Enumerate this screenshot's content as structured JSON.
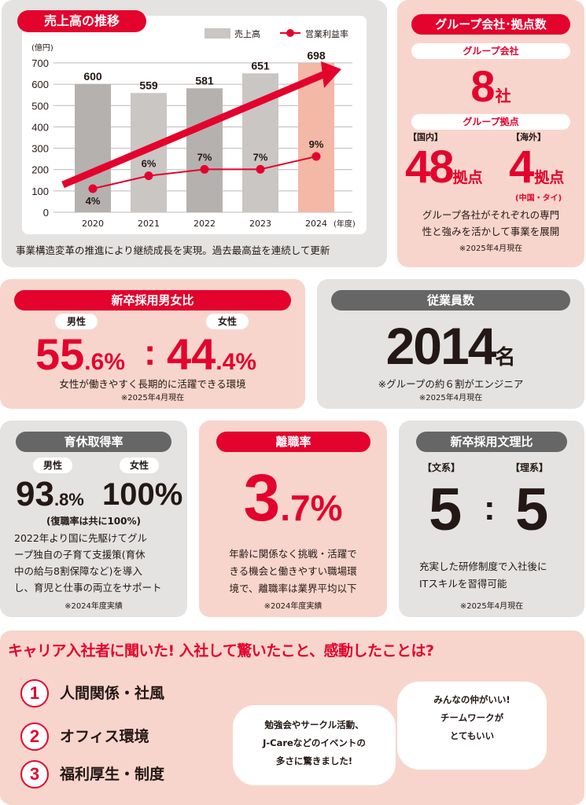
{
  "sales": {
    "title": "売上高の推移",
    "caption": "事業構造変革の推進により継続成長を実現。過去最高益を連続して更新"
  },
  "chart_data": {
    "type": "bar",
    "title": "売上高の推移",
    "ylabel": "(億円)",
    "xlabel": "(年度)",
    "ylim": [
      0,
      700
    ],
    "yticks": [
      "0",
      "100",
      "200",
      "300",
      "400",
      "500",
      "600",
      "700"
    ],
    "categories": [
      "2020",
      "2021",
      "2022",
      "2023",
      "2024"
    ],
    "series": [
      {
        "name": "売上高",
        "type": "bar",
        "values": [
          600,
          559,
          581,
          651,
          698
        ],
        "labels": [
          "600",
          "559",
          "581",
          "651",
          "698"
        ]
      },
      {
        "name": "営業利益率",
        "type": "line",
        "values": [
          4,
          6,
          7,
          7,
          9
        ],
        "labels": [
          "4%",
          "6%",
          "7%",
          "7%",
          "9%"
        ]
      }
    ],
    "legend": "top-right",
    "grid": true,
    "colors": {
      "bar": "#c9c6c3",
      "bar_alt": "#b5b1ae",
      "highlight": "#f4b8a6",
      "line": "#e3032d"
    }
  },
  "group": {
    "title": "グループ会社･拠点数",
    "companies_label": "グループ会社",
    "companies_value": "8",
    "companies_unit": "社",
    "bases_label": "グループ拠点",
    "domestic_label": "【国内】",
    "domestic_value": "48",
    "domestic_unit": "拠点",
    "overseas_label": "【海外】",
    "overseas_value": "4",
    "overseas_unit": "拠点",
    "overseas_note": "(中国・タイ)",
    "desc1": "グループ各社がそれぞれの専門",
    "desc2": "性と強みを活かして事業を展開",
    "note": "※2025年4月現在"
  },
  "gender": {
    "title": "新卒採用男女比",
    "male_label": "男性",
    "male_value": "55",
    "male_dec": ".6%",
    "colon": ":",
    "female_label": "女性",
    "female_value": "44",
    "female_dec": ".4%",
    "desc": "女性が働きやすく長期的に活躍できる環境",
    "note": "※2025年4月現在"
  },
  "employees": {
    "title": "従業員数",
    "value": "2014",
    "unit": "名",
    "desc": "※グループの約６割がエンジニア",
    "note": "※2025年4月現在"
  },
  "childcare": {
    "title": "育休取得率",
    "male_label": "男性",
    "male_value": "93",
    "male_dec": ".8%",
    "female_label": "女性",
    "female_value": "100%",
    "return_note": "(復職率は共に100%)",
    "desc": [
      "2022年より国に先駆けてグル",
      "ープ独自の子育て支援策(育休",
      "中の給与8割保障など)を導入",
      "し、育児と仕事の両立をサポート"
    ],
    "note": "※2024年度実績"
  },
  "turnover": {
    "title": "離職率",
    "value": "3",
    "dec": ".7%",
    "desc": [
      "年齢に関係なく挑戦・活躍で",
      "きる機会と働きやすい職場環",
      "境で、離職率は業界平均以下"
    ],
    "note": "※2024年度実績"
  },
  "arts": {
    "title": "新卒採用文理比",
    "arts_label": "【文系】",
    "science_label": "【理系】",
    "arts_value": "5",
    "colon": ":",
    "science_value": "5",
    "desc": [
      "充実した研修制度で入社後に",
      "ITスキルを習得可能"
    ],
    "note": "※2025年4月現在"
  },
  "career": {
    "title": "キャリア入社者に聞いた! 入社して驚いたこと、感動したことは?",
    "ranks": [
      {
        "num": "1",
        "label": "人間関係・社風"
      },
      {
        "num": "2",
        "label": "オフィス環境"
      },
      {
        "num": "3",
        "label": "福利厚生・制度"
      }
    ],
    "bubble1": [
      "勉強会やサークル活動、",
      "J-Careなどのイベントの",
      "多さに驚きました!"
    ],
    "bubble2": [
      "みんなの仲がいい!",
      "チームワークが",
      "とてもいい"
    ]
  }
}
